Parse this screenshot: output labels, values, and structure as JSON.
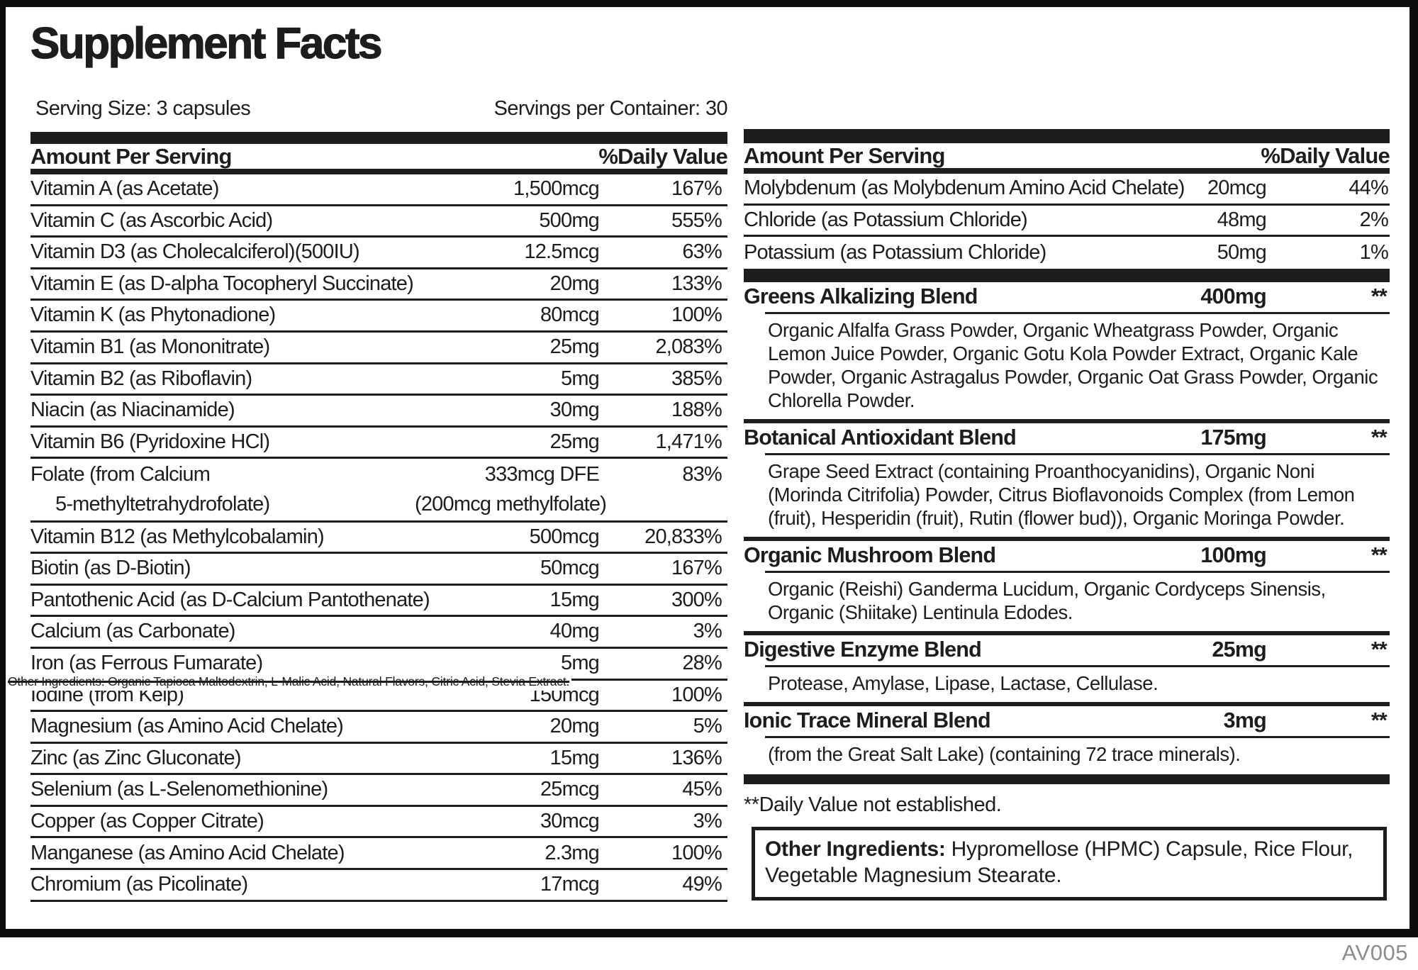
{
  "colors": {
    "ink": "#1d1d1b",
    "frame": "#0d0d0d",
    "muted": "#8c8c8c"
  },
  "label": {
    "title": "Supplement Facts",
    "serving_size": "Serving Size: 3 capsules",
    "servings_per_container": "Servings per Container: 30",
    "code": "AV005"
  },
  "left_table": {
    "header": {
      "amount": "Amount Per Serving",
      "dv": "%Daily Value"
    },
    "rows": [
      {
        "name": "Vitamin A (as Acetate)",
        "amount": "1,500mcg",
        "dv": "167%"
      },
      {
        "name": "Vitamin C (as Ascorbic Acid)",
        "amount": "500mg",
        "dv": "555%"
      },
      {
        "name": "Vitamin D3 (as Cholecalciferol)(500IU)",
        "amount": "12.5mcg",
        "dv": "63%"
      },
      {
        "name": "Vitamin E (as D-alpha Tocopheryl Succinate)",
        "amount": "20mg",
        "dv": "133%"
      },
      {
        "name": "Vitamin K (as Phytonadione)",
        "amount": "80mcg",
        "dv": "100%"
      },
      {
        "name": "Vitamin B1 (as Mononitrate)",
        "amount": "25mg",
        "dv": "2,083%"
      },
      {
        "name": "Vitamin B2 (as Riboflavin)",
        "amount": "5mg",
        "dv": "385%"
      },
      {
        "name": "Niacin (as Niacinamide)",
        "amount": "30mg",
        "dv": "188%"
      },
      {
        "name": "Vitamin B6 (Pyridoxine HCl)",
        "amount": "25mg",
        "dv": "1,471%"
      },
      {
        "name": "Folate (from Calcium",
        "name2": "5-methyltetrahydrofolate)",
        "amount": "333mcg DFE",
        "amount2": "(200mcg methylfolate)",
        "dv": "83%"
      },
      {
        "name": "Vitamin B12 (as Methylcobalamin)",
        "amount": "500mcg",
        "dv": "20,833%"
      },
      {
        "name": "Biotin (as D-Biotin)",
        "amount": "50mcg",
        "dv": "167%"
      },
      {
        "name": "Pantothenic Acid (as D-Calcium Pantothenate)",
        "amount": "15mg",
        "dv": "300%"
      },
      {
        "name": "Calcium (as Carbonate)",
        "amount": "40mg",
        "dv": "3%"
      },
      {
        "name": "Iron (as Ferrous Fumarate)",
        "amount": "5mg",
        "dv": "28%"
      },
      {
        "name": "Iodine (from Kelp)",
        "amount": "150mcg",
        "dv": "100%"
      },
      {
        "name": "Magnesium (as Amino Acid Chelate)",
        "amount": "20mg",
        "dv": "5%"
      },
      {
        "name": "Zinc (as Zinc Gluconate)",
        "amount": "15mg",
        "dv": "136%"
      },
      {
        "name": "Selenium (as L-Selenomethionine)",
        "amount": "25mcg",
        "dv": "45%"
      },
      {
        "name": "Copper (as Copper Citrate)",
        "amount": "30mcg",
        "dv": "3%"
      },
      {
        "name": "Manganese (as Amino Acid Chelate)",
        "amount": "2.3mg",
        "dv": "100%"
      },
      {
        "name": "Chromium (as Picolinate)",
        "amount": "17mcg",
        "dv": "49%"
      }
    ],
    "overlay_note": "Other Ingredients: Organic Tapioca Maltodextrin, L-Malic Acid, Natural Flavors, Citric Acid, Stevia Extract."
  },
  "right_table": {
    "header": {
      "amount": "Amount Per Serving",
      "dv": "%Daily Value"
    },
    "rows": [
      {
        "name": "Molybdenum (as Molybdenum Amino Acid Chelate)",
        "amount": "20mcg",
        "dv": "44%"
      },
      {
        "name": "Chloride (as Potassium Chloride)",
        "amount": "48mg",
        "dv": "2%"
      },
      {
        "name": "Potassium (as Potassium Chloride)",
        "amount": "50mg",
        "dv": "1%"
      }
    ],
    "blends": [
      {
        "name": "Greens Alkalizing Blend",
        "amount": "400mg",
        "dv": "**",
        "ingredients": "Organic Alfalfa Grass Powder, Organic Wheatgrass Powder, Organic Lemon Juice Powder, Organic Gotu Kola Powder Extract, Organic Kale Powder, Organic Astragalus Powder, Organic Oat Grass Powder, Organic Chlorella Powder."
      },
      {
        "name": "Botanical Antioxidant Blend",
        "amount": "175mg",
        "dv": "**",
        "ingredients": "Grape Seed Extract (containing Proanthocyanidins), Organic Noni (Morinda Citrifolia) Powder, Citrus Bioflavonoids Complex (from Lemon (fruit), Hesperidin (fruit), Rutin (flower bud)), Organic Moringa Powder."
      },
      {
        "name": "Organic Mushroom Blend",
        "amount": "100mg",
        "dv": "**",
        "ingredients": "Organic (Reishi) Ganderma Lucidum, Organic Cordyceps Sinensis, Organic (Shiitake) Lentinula Edodes."
      },
      {
        "name": "Digestive Enzyme Blend",
        "amount": "25mg",
        "dv": "**",
        "ingredients": "Protease, Amylase, Lipase, Lactase, Cellulase."
      },
      {
        "name": "Ionic Trace Mineral Blend",
        "amount": "3mg",
        "dv": "**",
        "ingredients": "(from the Great Salt Lake) (containing 72 trace minerals)."
      }
    ],
    "footnote": "**Daily Value not established.",
    "other_ingredients": {
      "label": "Other Ingredients:",
      "text": "Hypromellose (HPMC) Capsule, Rice Flour, Vegetable Magnesium Stearate."
    }
  }
}
